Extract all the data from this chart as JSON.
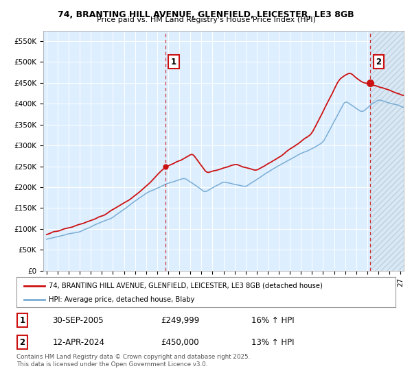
{
  "title": "74, BRANTING HILL AVENUE, GLENFIELD, LEICESTER, LE3 8GB",
  "subtitle": "Price paid vs. HM Land Registry's House Price Index (HPI)",
  "ytick_vals": [
    0,
    50000,
    100000,
    150000,
    200000,
    250000,
    300000,
    350000,
    400000,
    450000,
    500000,
    550000
  ],
  "ylim": [
    0,
    575000
  ],
  "xlim_start": 1994.7,
  "xlim_end": 2027.3,
  "bg_color": "#ddeeff",
  "hpi_color": "#7aadd4",
  "price_color": "#cc1111",
  "vline1_x": 2005.75,
  "vline2_x": 2024.28,
  "marker1_x": 2005.75,
  "marker1_y": 249999,
  "marker2_x": 2024.28,
  "marker2_y": 450000,
  "legend_line1": "74, BRANTING HILL AVENUE, GLENFIELD, LEICESTER, LE3 8GB (detached house)",
  "legend_line2": "HPI: Average price, detached house, Blaby",
  "annotation1_date": "30-SEP-2005",
  "annotation1_price": "£249,999",
  "annotation1_hpi": "16% ↑ HPI",
  "annotation2_date": "12-APR-2024",
  "annotation2_price": "£450,000",
  "annotation2_hpi": "13% ↑ HPI",
  "footer": "Contains HM Land Registry data © Crown copyright and database right 2025.\nThis data is licensed under the Open Government Licence v3.0.",
  "hatch_color": "#bbccdd",
  "label_box_color": "#cc1111",
  "grid_color": "#ffffff"
}
